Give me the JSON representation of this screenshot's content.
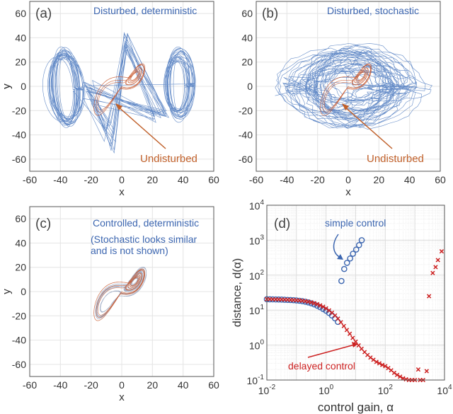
{
  "colors": {
    "disturbed": "#3f6fba",
    "undisturbed": "#c8562a",
    "simple": "#3c66b0",
    "delayed": "#cc1f1f",
    "grid": "#e4e4e4"
  },
  "chart_data": [
    {
      "panel": "(a)",
      "type": "line",
      "xlabel": "x",
      "ylabel": "y",
      "xlim": [
        -60,
        60
      ],
      "ylim": [
        -70,
        70
      ],
      "xticks": [
        -60,
        -40,
        -20,
        0,
        20,
        40,
        60
      ],
      "yticks": [
        -60,
        -40,
        -20,
        0,
        20,
        40,
        60
      ],
      "grid": true,
      "annotations": {
        "title": "Disturbed, deterministic",
        "arrow_label": "Undisturbed"
      }
    },
    {
      "panel": "(b)",
      "type": "line",
      "xlabel": "x",
      "ylabel": "y",
      "xlim": [
        -60,
        60
      ],
      "ylim": [
        -70,
        70
      ],
      "xticks": [
        -60,
        -40,
        -20,
        0,
        20,
        40,
        60
      ],
      "yticks": [
        -60,
        -40,
        -20,
        0,
        20,
        40,
        60
      ],
      "grid": true,
      "annotations": {
        "title": "Disturbed, stochastic",
        "arrow_label": "Undisturbed"
      }
    },
    {
      "panel": "(c)",
      "type": "line",
      "xlabel": "x",
      "ylabel": "y",
      "xlim": [
        -60,
        60
      ],
      "ylim": [
        -70,
        70
      ],
      "xticks": [
        -60,
        -40,
        -20,
        0,
        20,
        40,
        60
      ],
      "yticks": [
        -60,
        -40,
        -20,
        0,
        20,
        40,
        60
      ],
      "grid": true,
      "annotations": {
        "title": "Controlled, deterministic",
        "note_line1": "(Stochastic looks similar",
        "note_line2": "and is not shown)"
      }
    },
    {
      "panel": "(d)",
      "type": "scatter",
      "xlabel": "control gain, α",
      "ylabel": "distance, d(α)",
      "xscale": "log",
      "yscale": "log",
      "xlim": [
        0.01,
        10000
      ],
      "ylim": [
        0.1,
        10000
      ],
      "xticks": [
        "10^-2",
        "10^0",
        "10^2",
        "10^4"
      ],
      "yticks": [
        "10^-1",
        "10^0",
        "10^1",
        "10^2",
        "10^3",
        "10^4"
      ],
      "grid": true,
      "series": [
        {
          "name": "simple control",
          "marker": "circle",
          "x": [
            0.01,
            0.0126,
            0.0158,
            0.02,
            0.0251,
            0.0316,
            0.0398,
            0.0501,
            0.0631,
            0.0794,
            0.1,
            0.126,
            0.158,
            0.2,
            0.251,
            0.316,
            0.398,
            0.501,
            0.631,
            0.794,
            1,
            1.26,
            1.58,
            2,
            2.51,
            3.3,
            4.1,
            5.1,
            6.5,
            8.1,
            10.4,
            13,
            16
          ],
          "y": [
            20.5,
            20.4,
            20.3,
            20.2,
            20.1,
            20,
            19.8,
            19.6,
            19.4,
            19.2,
            18.9,
            18.5,
            18,
            17.4,
            16.6,
            15.7,
            14.6,
            13.4,
            12.1,
            10.8,
            9.6,
            8.3,
            7,
            5.8,
            4.6,
            68,
            150,
            225,
            300,
            410,
            540,
            725,
            1000
          ]
        },
        {
          "name": "delayed control",
          "marker": "x",
          "x": [
            0.01,
            0.0126,
            0.0158,
            0.02,
            0.0251,
            0.0316,
            0.0398,
            0.0501,
            0.0631,
            0.0794,
            0.1,
            0.126,
            0.158,
            0.2,
            0.251,
            0.316,
            0.398,
            0.501,
            0.631,
            0.794,
            1,
            1.26,
            1.58,
            2,
            2.51,
            3.16,
            3.98,
            5.01,
            6.31,
            7.94,
            10,
            12.6,
            15.8,
            20,
            25.1,
            31.6,
            39.8,
            50.1,
            63.1,
            79.4,
            100,
            126,
            158,
            200,
            251,
            316,
            398,
            501,
            631,
            794,
            1000,
            1300,
            1500,
            1900,
            2500,
            3000,
            4000,
            5000,
            6000,
            8000
          ],
          "y": [
            20.5,
            20.5,
            20.4,
            20.3,
            20.2,
            20.1,
            20,
            19.8,
            19.6,
            19.4,
            19.2,
            18.9,
            18.5,
            18,
            17.4,
            16.7,
            15.8,
            14.8,
            13.7,
            12.5,
            11.2,
            9.8,
            8.4,
            7,
            5.7,
            4.5,
            3.5,
            2.7,
            2.1,
            1.6,
            1.25,
            0.98,
            0.78,
            0.63,
            0.52,
            0.44,
            0.38,
            0.33,
            0.3,
            0.27,
            0.25,
            0.22,
            0.19,
            0.16,
            0.14,
            0.125,
            0.112,
            0.105,
            0.1,
            0.1,
            0.1,
            0.2,
            0.1,
            0.1,
            0.18,
            25,
            115,
            170,
            270,
            480
          ]
        }
      ],
      "annotations": {
        "simple_label": "simple control",
        "delayed_label": "delayed control"
      }
    }
  ]
}
